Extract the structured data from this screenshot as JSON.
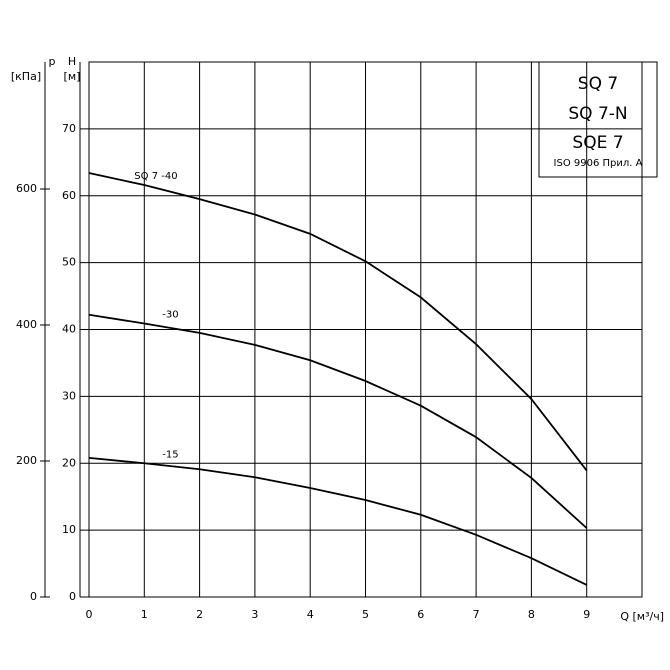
{
  "chart_data": {
    "type": "line",
    "y_label_top": "H",
    "y_label_unit": "[м]",
    "y2_label_top": "p",
    "y2_label_unit": "[кПа]",
    "x_label": "Q [м³/ч]",
    "legend_lines": [
      "SQ 7",
      "SQ 7-N",
      "SQE 7",
      "ISO 9906 Прил. A"
    ],
    "x": [
      0,
      1,
      2,
      3,
      4,
      5,
      6,
      7,
      8,
      9
    ],
    "xlim": [
      0,
      10
    ],
    "xticks": [
      0,
      1,
      2,
      3,
      4,
      5,
      6,
      7,
      8,
      9
    ],
    "ylim": [
      0,
      80
    ],
    "yticks": [
      0,
      10,
      20,
      30,
      40,
      50,
      60,
      70
    ],
    "y2lim": [
      0,
      786.8
    ],
    "y2ticks": [
      0,
      200,
      400,
      600
    ],
    "grid": true,
    "series": [
      {
        "name": "SQ 7 -40",
        "color": "#000000",
        "values": [
          63.4,
          61.6,
          59.5,
          57.2,
          54.3,
          50.2,
          44.8,
          37.8,
          29.6,
          18.9
        ]
      },
      {
        "name": "-30",
        "color": "#000000",
        "values": [
          42.2,
          40.9,
          39.5,
          37.7,
          35.4,
          32.3,
          28.6,
          23.9,
          17.8,
          10.3
        ]
      },
      {
        "name": "-15",
        "color": "#000000",
        "values": [
          20.8,
          20.0,
          19.1,
          17.9,
          16.3,
          14.5,
          12.3,
          9.3,
          5.8,
          1.8
        ]
      }
    ]
  }
}
